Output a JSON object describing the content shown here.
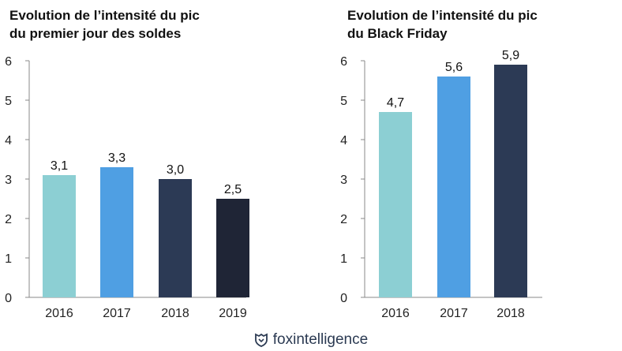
{
  "chart_data": [
    {
      "type": "bar",
      "title": "Evolution de l’intensité du pic du premier jour des soldes",
      "title_lines": [
        "Evolution de l’intensité du pic",
        "du premier jour des soldes"
      ],
      "categories": [
        "2016",
        "2017",
        "2018",
        "2019"
      ],
      "values": [
        3.1,
        3.3,
        3.0,
        2.5
      ],
      "value_labels": [
        "3,1",
        "3,3",
        "3,0",
        "2,5"
      ],
      "colors": [
        "#8ccfd3",
        "#4f9fe3",
        "#2c3a55",
        "#1f2536"
      ],
      "ylim": [
        0,
        6
      ],
      "yticks": [
        "0",
        "1",
        "2",
        "3",
        "4",
        "5",
        "6"
      ],
      "grid": false,
      "xlabel": "",
      "ylabel": ""
    },
    {
      "type": "bar",
      "title": "Evolution de l’intensité du pic du Black Friday",
      "title_lines": [
        "Evolution de l’intensité du pic",
        "du Black Friday"
      ],
      "categories": [
        "2016",
        "2017",
        "2018"
      ],
      "values": [
        4.7,
        5.6,
        5.9
      ],
      "value_labels": [
        "4,7",
        "5,6",
        "5,9"
      ],
      "colors": [
        "#8ccfd3",
        "#4f9fe3",
        "#2c3a55"
      ],
      "ylim": [
        0,
        6
      ],
      "yticks": [
        "0",
        "1",
        "2",
        "3",
        "4",
        "5",
        "6"
      ],
      "grid": false,
      "xlabel": "",
      "ylabel": ""
    }
  ],
  "footer": {
    "brand": "foxintelligence",
    "icon": "fox-shield-icon",
    "color": "#2b3a52"
  }
}
